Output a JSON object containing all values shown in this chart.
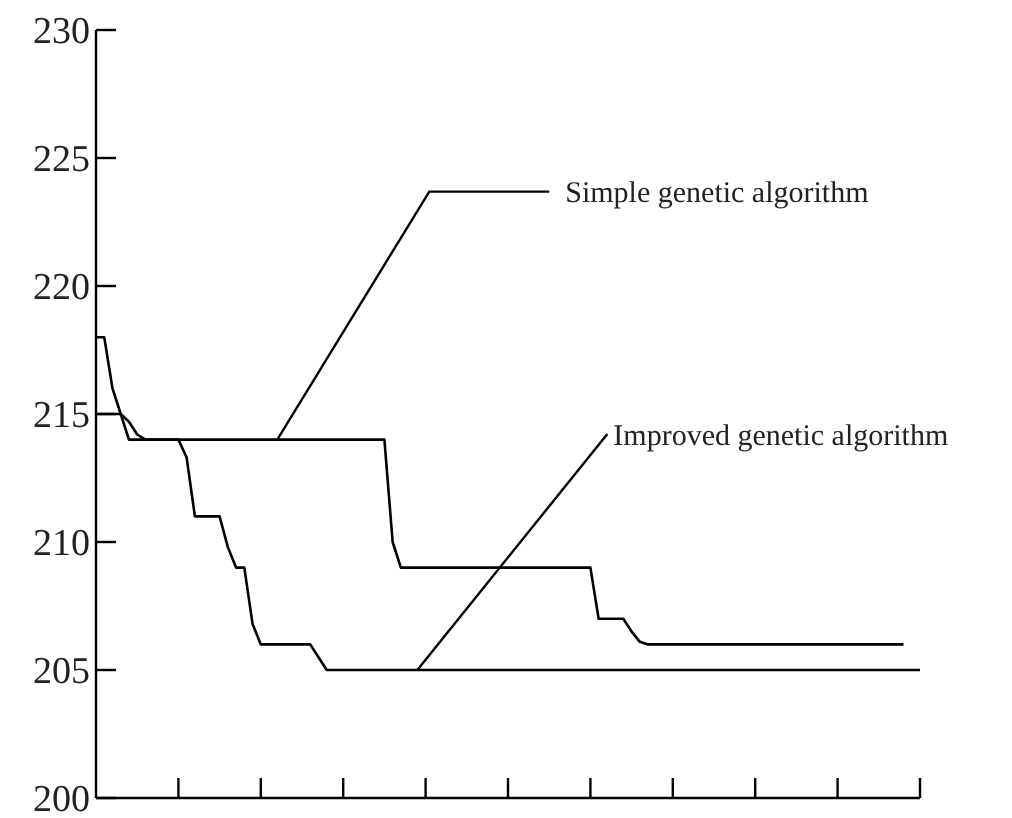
{
  "chart_data": {
    "type": "line",
    "ylim": [
      200,
      230
    ],
    "categories": [
      null,
      null,
      null,
      null,
      null,
      null,
      null,
      null,
      null,
      null,
      null,
      null,
      null,
      null,
      null,
      null,
      null,
      null,
      null,
      null,
      null,
      null,
      null,
      null,
      null,
      null,
      null,
      null,
      null,
      null,
      null,
      null,
      null,
      null,
      null,
      null,
      null,
      null,
      null,
      null,
      null,
      null,
      null,
      null,
      null,
      null,
      null,
      null,
      null,
      null,
      null,
      null,
      null,
      null,
      null,
      null,
      null,
      null,
      null,
      null,
      null,
      null,
      null,
      null,
      null,
      null,
      null,
      null,
      null,
      null,
      null,
      null,
      null,
      null,
      null,
      null,
      null,
      null,
      null,
      null,
      null,
      null,
      null,
      null,
      null,
      null,
      null,
      null,
      null,
      null,
      null,
      null,
      null,
      null,
      null,
      null,
      null,
      null,
      null,
      null,
      null
    ],
    "yticks": [
      200,
      205,
      210,
      215,
      220,
      225,
      230
    ],
    "tick_labels": "y",
    "grid": false,
    "legend": false,
    "marker": "none",
    "line_style": "solid",
    "series": [
      {
        "color": "#000000",
        "values": [
          218,
          218,
          216,
          215,
          214,
          214,
          214,
          214,
          214,
          214,
          214,
          214,
          214,
          214,
          214,
          214,
          214,
          214,
          214,
          214,
          214,
          214,
          214,
          214,
          214,
          214,
          214,
          214,
          214,
          214,
          214,
          214,
          214,
          214,
          214,
          214,
          210,
          209,
          209,
          209,
          209,
          209,
          209,
          209,
          209,
          209,
          209,
          209,
          209,
          209,
          209,
          209,
          209,
          209,
          209,
          209,
          209,
          209,
          209,
          209,
          209,
          207,
          207,
          207,
          207,
          206.5,
          206.1,
          206,
          206,
          206,
          206,
          206,
          206,
          206,
          206,
          206,
          206,
          206,
          206,
          206,
          206,
          206,
          206,
          206,
          206,
          206,
          206,
          206,
          206,
          206,
          206,
          206,
          206,
          206,
          206,
          206,
          206,
          206,
          206,
          null,
          null
        ]
      },
      {
        "color": "#000000",
        "values": [
          215,
          215,
          215,
          215,
          214.7,
          214.2,
          214,
          214,
          214,
          214,
          214,
          213.3,
          211,
          211,
          211,
          211,
          209.8,
          209,
          209,
          206.8,
          206,
          206,
          206,
          206,
          206,
          206,
          206,
          205.5,
          205,
          205,
          205,
          205,
          205,
          205,
          205,
          205,
          205,
          205,
          205,
          205,
          205,
          205,
          205,
          205,
          205,
          205,
          205,
          205,
          205,
          205,
          205,
          205,
          205,
          205,
          205,
          205,
          205,
          205,
          205,
          205,
          205,
          205,
          205,
          205,
          205,
          205,
          205,
          205,
          205,
          205,
          205,
          205,
          205,
          205,
          205,
          205,
          205,
          205,
          205,
          205,
          205,
          205,
          205,
          205,
          205,
          205,
          205,
          205,
          205,
          205,
          205,
          205,
          205,
          205,
          205,
          205,
          205,
          205,
          205,
          205,
          205
        ]
      }
    ],
    "annotations": [
      "Simple genetic algorithm",
      "Improved genetic algorithm"
    ]
  }
}
